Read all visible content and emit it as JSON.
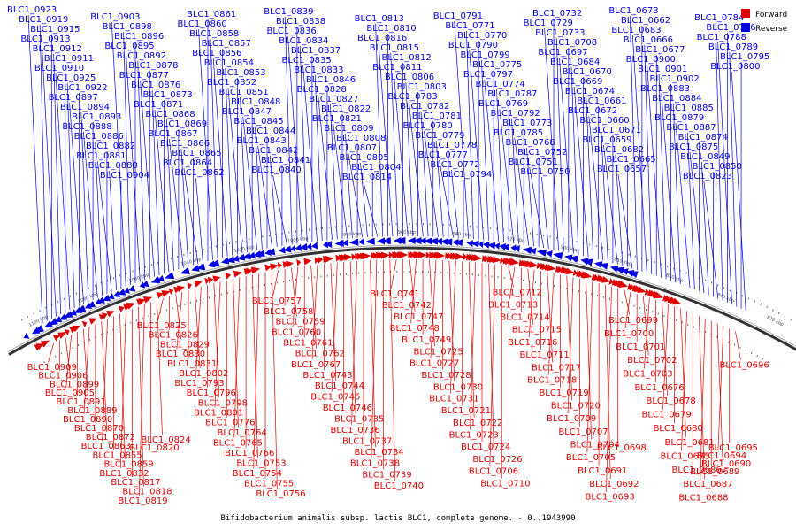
{
  "caption": "Bifidobacterium animalis subsp. lactis BLC1, complete genome. - 0..1943990",
  "colors": {
    "forward": "#e00000",
    "reverse": "#0000e0",
    "backbone": "#333333",
    "tick": "#444444"
  },
  "legend": [
    {
      "label": "Forward",
      "color": "#e00000"
    },
    {
      "label": "Reverse",
      "color": "#0000e0"
    }
  ],
  "ticks": [
    "1100 kbp",
    "1080 kbp",
    "1060 kbp",
    "1040 kbp",
    "1020 kbp",
    "1000 kbp",
    "980 kbp",
    "960 kbp",
    "940 kbp",
    "920 kbp",
    "900 kbp",
    "880 kbp",
    "860 kbp",
    "840 kbp",
    "820 kbp"
  ],
  "reverse_labels": [
    "BLC1_0923",
    "BLC1_0919",
    "BLC1_0915",
    "BLC1_0913",
    "BLC1_0912",
    "BLC1_0911",
    "BLC1_0910",
    "BLC1_0925",
    "BLC1_0922",
    "BLC1_0897",
    "BLC1_0894",
    "BLC1_0893",
    "BLC1_0888",
    "BLC1_0886",
    "BLC1_0882",
    "BLC1_0881",
    "BLC1_0880",
    "BLC1_0904",
    "BLC1_0903",
    "BLC1_0898",
    "BLC1_0896",
    "BLC1_0895",
    "BLC1_0892",
    "BLC1_0878",
    "BLC1_0877",
    "BLC1_0876",
    "BLC1_0873",
    "BLC1_0871",
    "BLC1_0868",
    "BLC1_0869",
    "BLC1_0867",
    "BLC1_0866",
    "BLC1_0865",
    "BLC1_0864",
    "BLC1_0862",
    "BLC1_0861",
    "BLC1_0860",
    "BLC1_0858",
    "BLC1_0857",
    "BLC1_0856",
    "BLC1_0854",
    "BLC1_0853",
    "BLC1_0852",
    "BLC1_0851",
    "BLC1_0848",
    "BLC1_0847",
    "BLC1_0845",
    "BLC1_0844",
    "BLC1_0843",
    "BLC1_0842",
    "BLC1_0841",
    "BLC1_0840",
    "BLC1_0839",
    "BLC1_0838",
    "BLC1_0836",
    "BLC1_0834",
    "BLC1_0837",
    "BLC1_0835",
    "BLC1_0833",
    "BLC1_0846",
    "BLC1_0828",
    "BLC1_0827",
    "BLC1_0822",
    "BLC1_0821",
    "BLC1_0809",
    "BLC1_0808",
    "BLC1_0807",
    "BLC1_0805",
    "BLC1_0804",
    "BLC1_0814",
    "BLC1_0813",
    "BLC1_0810",
    "BLC1_0816",
    "BLC1_0815",
    "BLC1_0812",
    "BLC1_0811",
    "BLC1_0806",
    "BLC1_0803",
    "BLC1_0783",
    "BLC1_0782",
    "BLC1_0781",
    "BLC1_0780",
    "BLC1_0779",
    "BLC1_0778",
    "BLC1_0777",
    "BLC1_0772",
    "BLC1_0794",
    "BLC1_0791",
    "BLC1_0771",
    "BLC1_0770",
    "BLC1_0790",
    "BLC1_0799",
    "BLC1_0775",
    "BLC1_0797",
    "BLC1_0774",
    "BLC1_0787",
    "BLC1_0769",
    "BLC1_0792",
    "BLC1_0773",
    "BLC1_0785",
    "BLC1_0768",
    "BLC1_0752",
    "BLC1_0751",
    "BLC1_0750",
    "BLC1_0732",
    "BLC1_0729",
    "BLC1_0733",
    "BLC1_0708",
    "BLC1_0697",
    "BLC1_0684",
    "BLC1_0670",
    "BLC1_0669",
    "BLC1_0674",
    "BLC1_0661",
    "BLC1_0672",
    "BLC1_0660",
    "BLC1_0671",
    "BLC1_0659",
    "BLC1_0682",
    "BLC1_0665",
    "BLC1_0657",
    "BLC1_0673",
    "BLC1_0662",
    "BLC1_0683",
    "BLC1_0666",
    "BLC1_0677",
    "BLC1_0900",
    "BLC1_0901",
    "BLC1_0902",
    "BLC1_0883",
    "BLC1_0884",
    "BLC1_0885",
    "BLC1_0879",
    "BLC1_0887",
    "BLC1_0874",
    "BLC1_0875",
    "BLC1_0849",
    "BLC1_0850",
    "BLC1_0823",
    "BLC1_0784",
    "BLC1_0786",
    "BLC1_0788",
    "BLC1_0789",
    "BLC1_0795",
    "BLC1_0800"
  ],
  "forward_labels": [
    "BLC1_0909",
    "BLC1_0906",
    "BLC1_0899",
    "BLC1_0905",
    "BLC1_0891",
    "BLC1_0889",
    "BLC1_0890",
    "BLC1_0870",
    "BLC1_0872",
    "BLC1_0863",
    "BLC1_0855",
    "BLC1_0859",
    "BLC1_0832",
    "BLC1_0817",
    "BLC1_0818",
    "BLC1_0819",
    "BLC1_0820",
    "BLC1_0824",
    "BLC1_0825",
    "BLC1_0826",
    "BLC1_0829",
    "BLC1_0830",
    "BLC1_0831",
    "BLC1_0802",
    "BLC1_0793",
    "BLC1_0796",
    "BLC1_0798",
    "BLC1_0801",
    "BLC1_0776",
    "BLC1_0764",
    "BLC1_0765",
    "BLC1_0766",
    "BLC1_0753",
    "BLC1_0754",
    "BLC1_0755",
    "BLC1_0756",
    "BLC1_0757",
    "BLC1_0758",
    "BLC1_0759",
    "BLC1_0760",
    "BLC1_0761",
    "BLC1_0762",
    "BLC1_0767",
    "BLC1_0743",
    "BLC1_0744",
    "BLC1_0745",
    "BLC1_0746",
    "BLC1_0735",
    "BLC1_0736",
    "BLC1_0737",
    "BLC1_0734",
    "BLC1_0738",
    "BLC1_0739",
    "BLC1_0740",
    "BLC1_0741",
    "BLC1_0742",
    "BLC1_0747",
    "BLC1_0748",
    "BLC1_0749",
    "BLC1_0725",
    "BLC1_0727",
    "BLC1_0728",
    "BLC1_0730",
    "BLC1_0731",
    "BLC1_0721",
    "BLC1_0722",
    "BLC1_0723",
    "BLC1_0724",
    "BLC1_0726",
    "BLC1_0706",
    "BLC1_0710",
    "BLC1_0712",
    "BLC1_0713",
    "BLC1_0714",
    "BLC1_0715",
    "BLC1_0716",
    "BLC1_0711",
    "BLC1_0717",
    "BLC1_0718",
    "BLC1_0719",
    "BLC1_0720",
    "BLC1_0709",
    "BLC1_0707",
    "BLC1_0704",
    "BLC1_0705",
    "BLC1_0691",
    "BLC1_0692",
    "BLC1_0693",
    "BLC1_0698",
    "BLC1_0699",
    "BLC1_0700",
    "BLC1_0701",
    "BLC1_0702",
    "BLC1_0703",
    "BLC1_0676",
    "BLC1_0678",
    "BLC1_0679",
    "BLC1_0680",
    "BLC1_0681",
    "BLC1_0685",
    "BLC1_0686",
    "BLC1_0687",
    "BLC1_0688",
    "BLC1_0689",
    "BLC1_0690",
    "BLC1_0694",
    "BLC1_0695",
    "BLC1_0696"
  ]
}
